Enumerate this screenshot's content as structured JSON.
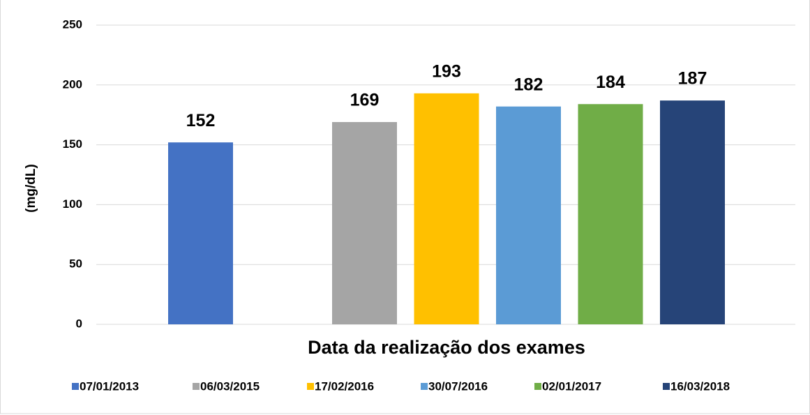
{
  "chart_data": {
    "type": "bar",
    "ylabel": "(mg/dL)",
    "xlabel": "Data da realização dos exames",
    "series": [
      {
        "name": "07/01/2013",
        "color": "#4472c4",
        "values": [
          152
        ]
      },
      {
        "name": "06/03/2015",
        "color": "#a5a5a5",
        "values": [
          169
        ]
      },
      {
        "name": "17/02/2016",
        "color": "#ffc000",
        "values": [
          193
        ]
      },
      {
        "name": "30/07/2016",
        "color": "#5b9bd5",
        "values": [
          182
        ]
      },
      {
        "name": "02/01/2017",
        "color": "#70ad47",
        "values": [
          184
        ]
      },
      {
        "name": "16/03/2018",
        "color": "#264478",
        "values": [
          187
        ]
      }
    ],
    "ylim": [
      0,
      250
    ],
    "yticks": [
      0,
      50,
      100,
      150,
      200,
      250
    ],
    "grid": true,
    "legend": "bottom"
  }
}
